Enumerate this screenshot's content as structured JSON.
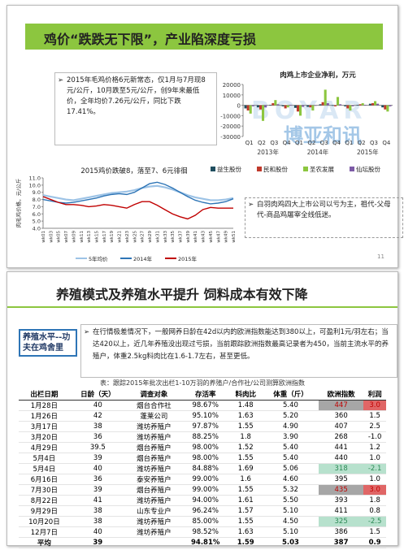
{
  "slide1": {
    "title": "鸡价“跌跌无下限”，产业陷深度亏损",
    "note": "2015年毛鸡价格6元新常态，仅1月与7月现8元/公斤，10月跌至5元/公斤，创9年来最低价，全年均价7.26元/公斤，同比下跌17.41%。",
    "callout": "白羽肉鸡四大上市公司以亏为主，祖代-父母代-商品鸡屠宰全线低迷。",
    "page_number": "11",
    "watermark": {
      "cn": "博亚和讯",
      "en": "BOYAR"
    },
    "bar_chart": {
      "type": "bar",
      "title": "肉鸡上市企业净利，万元",
      "categories": [
        "Q1",
        "Q2",
        "Q3",
        "Q4",
        "Q1",
        "Q2",
        "Q3",
        "Q4",
        "Q1",
        "Q2",
        "Q3",
        "Q4"
      ],
      "groups": [
        "2013年",
        "2014年",
        "2015年"
      ],
      "ylim": [
        -30000,
        20000
      ],
      "yticks": [
        20000,
        10000,
        0,
        -10000,
        -20000,
        -30000
      ],
      "series": [
        {
          "name": "益生股份",
          "color": "#1f4e5f",
          "values": [
            -3000,
            -2000,
            500,
            -1000,
            -2500,
            -1500,
            1000,
            -500,
            -1000,
            500,
            1500,
            -2000
          ]
        },
        {
          "name": "民和股份",
          "color": "#c0392b",
          "values": [
            -5000,
            -4000,
            2000,
            -3000,
            -6000,
            -2000,
            3000,
            -1000,
            -3000,
            1000,
            2000,
            -4000
          ]
        },
        {
          "name": "圣农发展",
          "color": "#8cc63f",
          "values": [
            -8000,
            -15000,
            5000,
            -2000,
            -10000,
            -5000,
            15000,
            8000,
            -5000,
            2000,
            4000,
            -6000
          ]
        },
        {
          "name": "仙坛股份",
          "color": "#7d5ba6",
          "values": [
            -1000,
            -2000,
            1000,
            500,
            -1500,
            -500,
            2000,
            1000,
            -1000,
            500,
            1500,
            -1000
          ]
        }
      ]
    },
    "line_chart": {
      "type": "line",
      "title": "2015鸡价跌破8，落至7、6元徘徊",
      "y_label": "肉毛鸡价格，元/公斤",
      "categories": [
        "wk01",
        "wk03",
        "wk05",
        "wk07",
        "wk09",
        "wk11",
        "wk13",
        "wk15",
        "wk17",
        "wk19",
        "wk21",
        "wk23",
        "wk25",
        "wk27",
        "wk29",
        "wk31",
        "wk33",
        "wk35",
        "wk37",
        "wk39",
        "wk41",
        "wk43",
        "wk45",
        "wk47",
        "wk49",
        "wk51"
      ],
      "ylim": [
        4,
        11
      ],
      "yticks": [
        {
          "value": 4,
          "label": "4.0"
        },
        {
          "value": 5,
          "label": "5.0"
        },
        {
          "value": 6,
          "label": "6.0"
        },
        {
          "value": 7,
          "label": "7.0"
        },
        {
          "value": 8,
          "label": "8.0"
        },
        {
          "value": 9,
          "label": "9.0"
        },
        {
          "value": 10,
          "label": "10.0"
        },
        {
          "value": 11,
          "label": "11.0"
        }
      ],
      "series": [
        {
          "name": "5年均价",
          "color": "#9dc3e6",
          "values": [
            8.6,
            8.4,
            8.2,
            8.0,
            7.9,
            8.1,
            8.3,
            8.5,
            8.7,
            8.9,
            9.0,
            9.1,
            9.3,
            9.6,
            9.8,
            9.9,
            9.7,
            9.4,
            9.0,
            8.6,
            8.3,
            8.1,
            7.9,
            7.9,
            8.0,
            8.2
          ]
        },
        {
          "name": "2014年",
          "color": "#2e75b6",
          "values": [
            8.0,
            7.8,
            7.6,
            7.5,
            7.6,
            7.8,
            8.0,
            8.2,
            8.5,
            8.7,
            8.8,
            8.7,
            9.0,
            9.6,
            10.2,
            10.4,
            10.1,
            9.6,
            9.0,
            8.4,
            7.9,
            7.6,
            7.4,
            7.5,
            7.7,
            8.1
          ]
        },
        {
          "name": "2015年",
          "color": "#c00000",
          "values": [
            8.4,
            8.0,
            7.6,
            7.3,
            7.3,
            7.2,
            7.0,
            7.1,
            7.3,
            7.2,
            7.0,
            6.8,
            7.3,
            7.7,
            7.7,
            7.2,
            6.6,
            6.0,
            5.6,
            5.3,
            5.8,
            6.6,
            6.9,
            6.8,
            6.8,
            6.8
          ]
        }
      ]
    }
  },
  "slide2": {
    "title": "养殖模式及养殖水平提升 饲料成本有效下降",
    "side_label": "养殖水平--功夫在鸡舍里",
    "paragraph": "在行情极差情况下，一般网养日龄在42d以内的欧洲指数能达到380以上，可盈利1元/羽左右；当达420以上，近几年养殖没出现过亏损，当前跟踪欧洲指数最高记录者为450，当前主流水平的养殖户，体重2.5kg料肉比在1.6-1.7左右，甚至更低。",
    "table": {
      "caption": "表：跟踪2015年批次出栏1-10万羽的养殖户/合作社/公司测算欧洲指数",
      "header": [
        "出栏日期",
        "日龄（天）",
        "调查对象",
        "存活率",
        "料肉比",
        "体重（斤）",
        "欧洲指数",
        "利润"
      ],
      "rows": [
        [
          "1月28日",
          "40",
          "烟台合作社",
          "98.67%",
          "1.48",
          "5.40",
          "447",
          "3.0"
        ],
        [
          "1月26日",
          "42",
          "蓬莱公司",
          "95.10%",
          "1.63",
          "5.20",
          "360",
          "1.5"
        ],
        [
          "3月17日",
          "38",
          "潍坊养殖户",
          "97.87%",
          "1.55",
          "4.90",
          "407",
          "2.5"
        ],
        [
          "3月20日",
          "36",
          "潍坊养殖户",
          "88.25%",
          "1.8",
          "3.90",
          "268",
          "-1.0"
        ],
        [
          "4月29日",
          "39.5",
          "烟台养殖户",
          "98.00%",
          "1.52",
          "5.40",
          "441",
          "1.2"
        ],
        [
          "5月4日",
          "39",
          "烟台养殖户",
          "98.00%",
          "1.55",
          "5.40",
          "440",
          "1.0"
        ],
        [
          "5月4日",
          "40",
          "潍坊养殖户",
          "84.88%",
          "1.69",
          "5.06",
          "318",
          "-2.1"
        ],
        [
          "6月16日",
          "36",
          "泰安养殖户",
          "99.00%",
          "1.6",
          "4.60",
          "395",
          "1.0"
        ],
        [
          "7月30日",
          "39",
          "烟台养殖户",
          "99.00%",
          "1.55",
          "5.32",
          "435",
          "3.0"
        ],
        [
          "8月22日",
          "41",
          "潍坊养殖户",
          "94.00%",
          "1.61",
          "5.50",
          "393",
          "1.8"
        ],
        [
          "9月29日",
          "38",
          "山东专业户",
          "96.24%",
          "1.57",
          "5.10",
          "411",
          "0.8"
        ],
        [
          "10月20日",
          "38",
          "潍坊养殖户",
          "85.00%",
          "1.55",
          "4.50",
          "325",
          "-2.5"
        ],
        [
          "12月7日",
          "40",
          "潍坊养殖户",
          "98.52%",
          "1.63",
          "5.10",
          "386",
          "1.5"
        ],
        [
          "平均",
          "39",
          "",
          "94.81%",
          "1.59",
          "5.03",
          "387",
          "0.9"
        ]
      ]
    }
  }
}
